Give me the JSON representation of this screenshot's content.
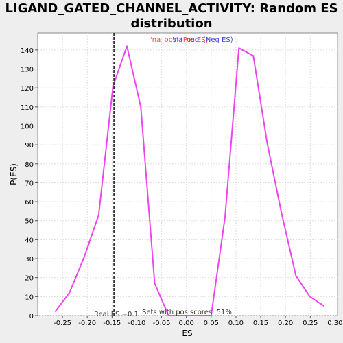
{
  "chart_data": {
    "type": "line",
    "title": "LIGAND_GATED_CHANNEL_ACTIVITY: Random ES distribution",
    "xlabel": "ES",
    "ylabel": "P(ES)",
    "xlim": [
      -0.3,
      0.305
    ],
    "ylim": [
      0,
      149
    ],
    "xticks": [
      -0.25,
      -0.2,
      -0.15,
      -0.1,
      -0.05,
      0.0,
      0.05,
      0.1,
      0.15,
      0.2,
      0.25,
      0.3
    ],
    "xtick_labels": [
      "-0.25",
      "-0.20",
      "-0.15",
      "-0.10",
      "-0.05",
      "0.00",
      "0.05",
      "0.10",
      "0.15",
      "0.20",
      "0.25",
      "0.30"
    ],
    "yticks": [
      0,
      10,
      20,
      30,
      40,
      50,
      60,
      70,
      80,
      90,
      100,
      110,
      120,
      130,
      140
    ],
    "grid": true,
    "legend": {
      "placement": "top-center",
      "entries": [
        {
          "label": "'na_pos' (Pos ES)",
          "color": "#ff4444"
        },
        {
          "label": "'na_neg' (Neg ES)",
          "color": "#4444dd"
        }
      ]
    },
    "series": [
      {
        "color": "#ee44ee",
        "x": [
          -0.265,
          -0.236,
          -0.206,
          -0.177,
          -0.148,
          -0.12,
          -0.092,
          -0.064,
          -0.036,
          -0.008,
          0.02,
          0.05,
          0.078,
          0.106,
          0.135,
          0.163,
          0.192,
          0.221,
          0.249,
          0.278
        ],
        "y": [
          2,
          12,
          31,
          53,
          121,
          142,
          110,
          17,
          0,
          0,
          0,
          0,
          52,
          141,
          137,
          91,
          54,
          21,
          10,
          5
        ]
      }
    ],
    "reference_line": {
      "x": -0.146,
      "label": "Real ES −0.1",
      "color": "#333333",
      "style": "dashed"
    },
    "annotations": [
      {
        "text": "Sets with pos scores: 51%"
      }
    ]
  }
}
